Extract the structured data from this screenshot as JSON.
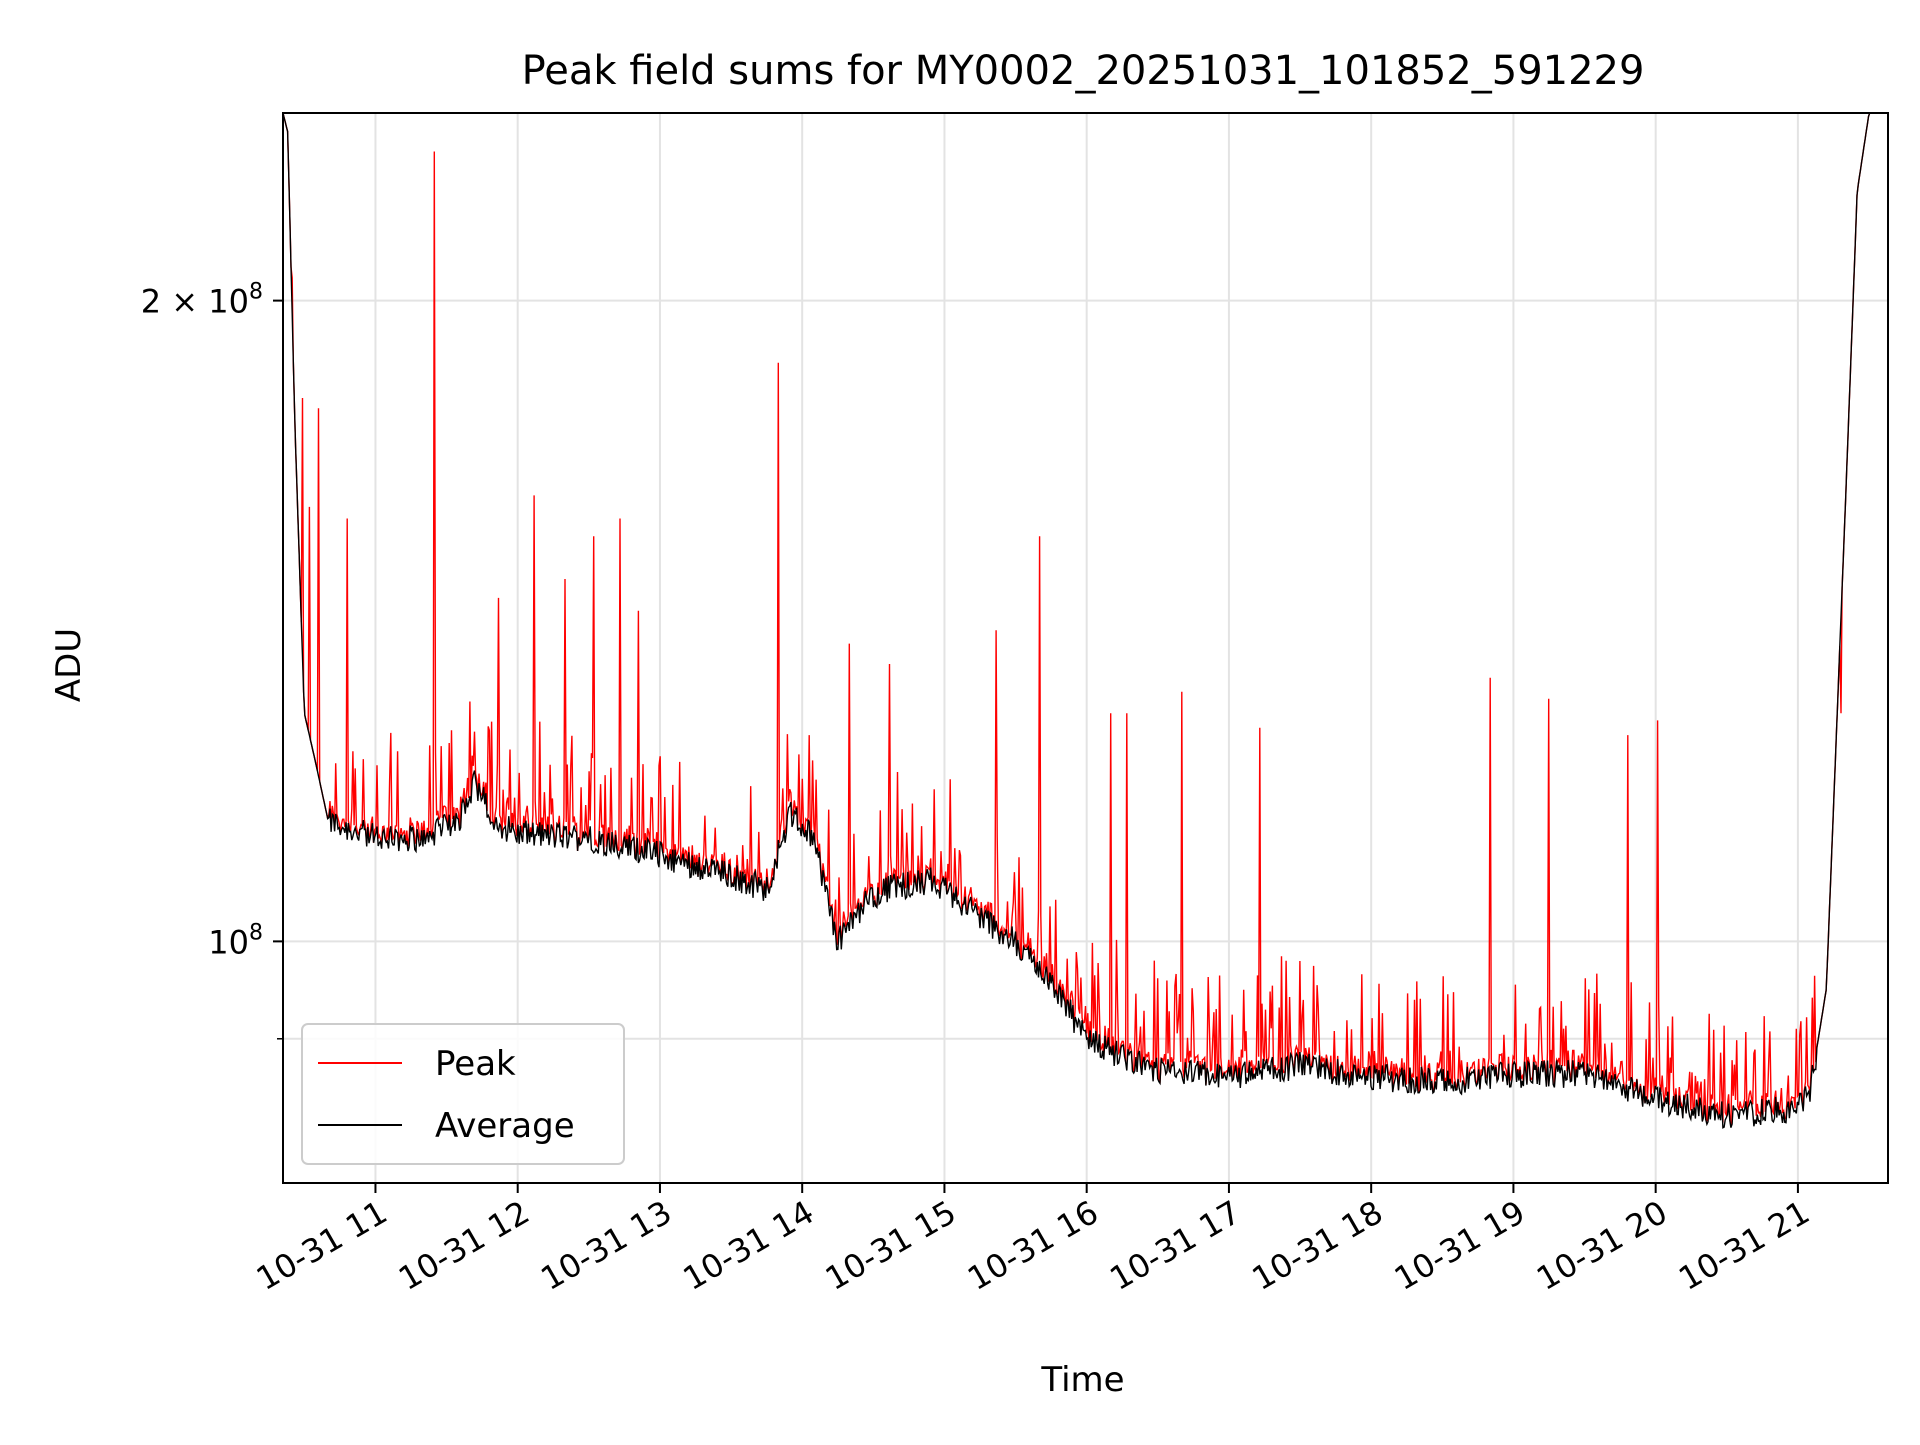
{
  "chart_data": {
    "type": "line",
    "title": "Peak field sums for MY0002_20251031_101852_591229",
    "xlabel": "Time",
    "ylabel": "ADU",
    "y_scale": "log",
    "ylim": [
      77000000,
      245000000
    ],
    "xlim": [
      "2025-10-31 10:21",
      "2025-10-31 21:38"
    ],
    "grid": true,
    "legend_position": "lower-left",
    "x_ticks": [
      {
        "value": "2025-10-31 11:00",
        "label": "10-31 11"
      },
      {
        "value": "2025-10-31 12:00",
        "label": "10-31 12"
      },
      {
        "value": "2025-10-31 13:00",
        "label": "10-31 13"
      },
      {
        "value": "2025-10-31 14:00",
        "label": "10-31 14"
      },
      {
        "value": "2025-10-31 15:00",
        "label": "10-31 15"
      },
      {
        "value": "2025-10-31 16:00",
        "label": "10-31 16"
      },
      {
        "value": "2025-10-31 17:00",
        "label": "10-31 17"
      },
      {
        "value": "2025-10-31 18:00",
        "label": "10-31 18"
      },
      {
        "value": "2025-10-31 19:00",
        "label": "10-31 19"
      },
      {
        "value": "2025-10-31 20:00",
        "label": "10-31 20"
      },
      {
        "value": "2025-10-31 21:00",
        "label": "10-31 21"
      }
    ],
    "y_ticks": [
      {
        "value": 100000000,
        "label_base": "10",
        "label_exp": "8",
        "label_coef": ""
      },
      {
        "value": 200000000,
        "label_base": "10",
        "label_exp": "8",
        "label_coef": "2 × "
      }
    ],
    "y_minor_ticks": [
      90000000
    ],
    "series": [
      {
        "name": "Peak",
        "color": "#ff0000",
        "spikes": [
          [
            "2025-10-31 10:25",
            205000000
          ],
          [
            "2025-10-31 10:29",
            180000000
          ],
          [
            "2025-10-31 10:32",
            160000000
          ],
          [
            "2025-10-31 10:36",
            178000000
          ],
          [
            "2025-10-31 10:48",
            158000000
          ],
          [
            "2025-10-31 11:25",
            235000000
          ],
          [
            "2025-10-31 11:52",
            145000000
          ],
          [
            "2025-10-31 12:07",
            162000000
          ],
          [
            "2025-10-31 12:20",
            148000000
          ],
          [
            "2025-10-31 12:32",
            155000000
          ],
          [
            "2025-10-31 12:43",
            158000000
          ],
          [
            "2025-10-31 12:51",
            143000000
          ],
          [
            "2025-10-31 13:50",
            187000000
          ],
          [
            "2025-10-31 14:20",
            138000000
          ],
          [
            "2025-10-31 14:37",
            135000000
          ],
          [
            "2025-10-31 15:22",
            140000000
          ],
          [
            "2025-10-31 15:40",
            155000000
          ],
          [
            "2025-10-31 16:10",
            128000000
          ],
          [
            "2025-10-31 16:17",
            128000000
          ],
          [
            "2025-10-31 16:40",
            131000000
          ],
          [
            "2025-10-31 17:13",
            126000000
          ],
          [
            "2025-10-31 18:50",
            133000000
          ],
          [
            "2025-10-31 19:15",
            130000000
          ],
          [
            "2025-10-31 19:48",
            125000000
          ],
          [
            "2025-10-31 20:01",
            127000000
          ],
          [
            "2025-10-31 21:18",
            128000000
          ]
        ]
      },
      {
        "name": "Average",
        "color": "#000000",
        "points": [
          [
            "2025-10-31 10:21",
            245000000
          ],
          [
            "2025-10-31 10:23",
            240000000
          ],
          [
            "2025-10-31 10:26",
            175000000
          ],
          [
            "2025-10-31 10:30",
            128000000
          ],
          [
            "2025-10-31 10:35",
            121000000
          ],
          [
            "2025-10-31 10:40",
            114000000
          ],
          [
            "2025-10-31 11:00",
            112000000
          ],
          [
            "2025-10-31 11:20",
            112000000
          ],
          [
            "2025-10-31 11:35",
            114000000
          ],
          [
            "2025-10-31 11:42",
            119000000
          ],
          [
            "2025-10-31 11:50",
            114000000
          ],
          [
            "2025-10-31 12:00",
            112500000
          ],
          [
            "2025-10-31 12:30",
            112000000
          ],
          [
            "2025-10-31 13:00",
            110000000
          ],
          [
            "2025-10-31 13:30",
            107500000
          ],
          [
            "2025-10-31 13:45",
            106000000
          ],
          [
            "2025-10-31 13:55",
            115000000
          ],
          [
            "2025-10-31 14:05",
            112000000
          ],
          [
            "2025-10-31 14:15",
            100000000
          ],
          [
            "2025-10-31 14:25",
            104000000
          ],
          [
            "2025-10-31 14:35",
            106000000
          ],
          [
            "2025-10-31 14:55",
            107000000
          ],
          [
            "2025-10-31 15:10",
            104000000
          ],
          [
            "2025-10-31 15:30",
            100000000
          ],
          [
            "2025-10-31 15:45",
            96000000
          ],
          [
            "2025-10-31 16:00",
            90000000
          ],
          [
            "2025-10-31 16:30",
            87000000
          ],
          [
            "2025-10-31 17:00",
            86500000
          ],
          [
            "2025-10-31 17:30",
            87600000
          ],
          [
            "2025-10-31 18:00",
            86500000
          ],
          [
            "2025-10-31 18:30",
            86000000
          ],
          [
            "2025-10-31 19:00",
            86700000
          ],
          [
            "2025-10-31 19:30",
            86800000
          ],
          [
            "2025-10-31 20:00",
            84500000
          ],
          [
            "2025-10-31 20:30",
            83000000
          ],
          [
            "2025-10-31 20:55",
            83500000
          ],
          [
            "2025-10-31 21:05",
            85000000
          ],
          [
            "2025-10-31 21:12",
            95000000
          ],
          [
            "2025-10-31 21:20",
            160000000
          ],
          [
            "2025-10-31 21:25",
            225000000
          ],
          [
            "2025-10-31 21:30",
            245000000
          ],
          [
            "2025-10-31 21:38",
            245000000
          ]
        ]
      }
    ]
  }
}
